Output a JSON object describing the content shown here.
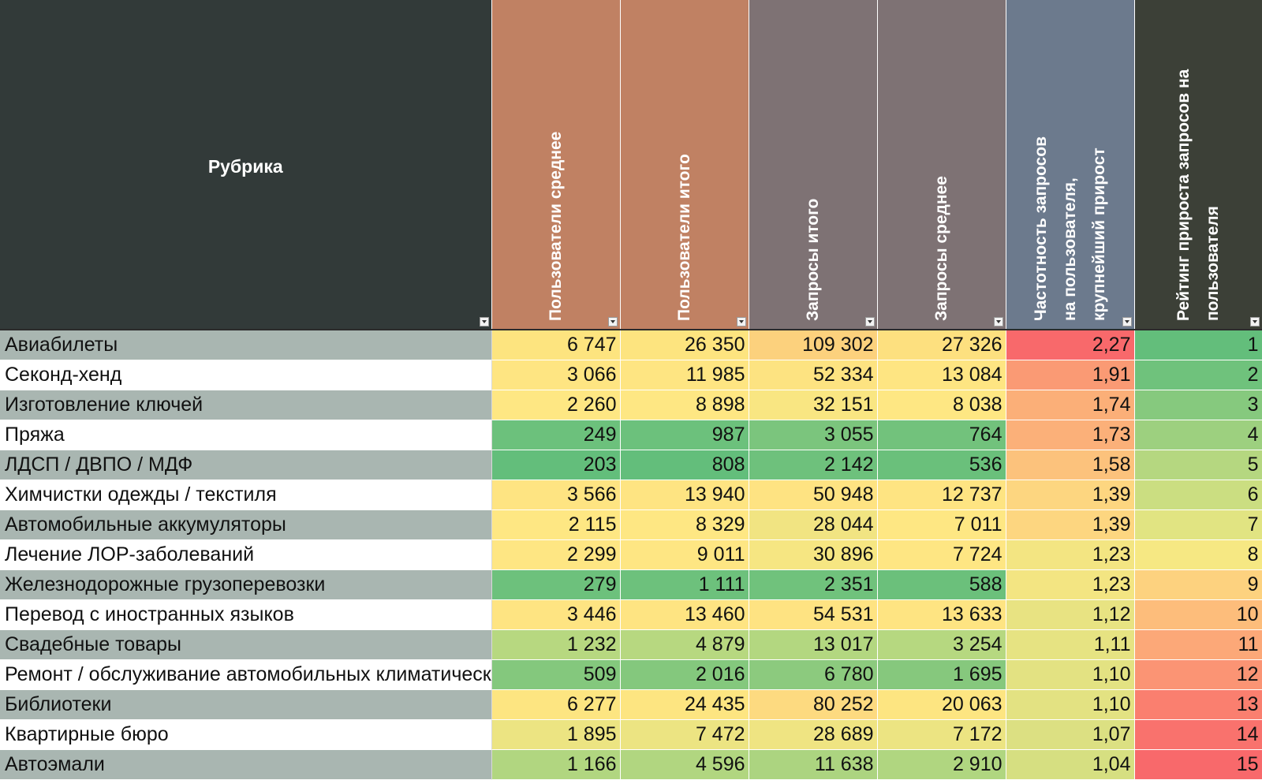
{
  "table": {
    "columns": [
      {
        "key": "rubric",
        "label": [
          "Рубрика"
        ],
        "header_bg": "#323a39"
      },
      {
        "key": "users_avg",
        "label": [
          "Пользователи среднее"
        ],
        "header_bg": "#c08163"
      },
      {
        "key": "users_total",
        "label": [
          "Пользователи итого"
        ],
        "header_bg": "#c08163"
      },
      {
        "key": "req_total",
        "label": [
          "Запросы итого"
        ],
        "header_bg": "#7e7274"
      },
      {
        "key": "req_avg",
        "label": [
          "Запросы среднее"
        ],
        "header_bg": "#7e7274"
      },
      {
        "key": "freq",
        "label": [
          "Частотность запросов",
          "на пользователя,",
          "крупнейший прирост"
        ],
        "header_bg": "#6c7a8d"
      },
      {
        "key": "rating",
        "label": [
          "Рейтинг прироста запросов на",
          "пользователя"
        ],
        "header_bg": "#3c4037"
      }
    ],
    "rows": [
      {
        "name": "Авиабилеты",
        "users_avg": "6 747",
        "users_total": "26 350",
        "req_total": "109 302",
        "req_avg": "27 326",
        "freq": "2,27",
        "rating": "1",
        "colors": [
          "#fde47f",
          "#fde47f",
          "#fcd17d",
          "#fde07f",
          "#f8696b",
          "#63be7b"
        ]
      },
      {
        "name": "Секонд-хенд",
        "users_avg": "3 066",
        "users_total": "11 985",
        "req_total": "52 334",
        "req_avg": "13 084",
        "freq": "1,91",
        "rating": "2",
        "colors": [
          "#fee582",
          "#fee582",
          "#fde381",
          "#fee582",
          "#fa9a74",
          "#6fc27c"
        ]
      },
      {
        "name": "Изготовление ключей",
        "users_avg": "2 260",
        "users_total": "8 898",
        "req_total": "32 151",
        "req_avg": "8 038",
        "freq": "1,74",
        "rating": "3",
        "colors": [
          "#fee783",
          "#fee783",
          "#f9e682",
          "#fee783",
          "#fbaf78",
          "#86c97e"
        ]
      },
      {
        "name": "Пряжа",
        "users_avg": "249",
        "users_total": "987",
        "req_total": "3 055",
        "req_avg": "764",
        "freq": "1,73",
        "rating": "4",
        "colors": [
          "#6cc17c",
          "#6cc17c",
          "#7bc57d",
          "#72c27c",
          "#fbb079",
          "#9dd07f"
        ]
      },
      {
        "name": "ЛДСП / ДВПО / МДФ",
        "users_avg": "203",
        "users_total": "808",
        "req_total": "2 142",
        "req_avg": "536",
        "freq": "1,58",
        "rating": "5",
        "colors": [
          "#63be7b",
          "#63be7b",
          "#6ec17c",
          "#6ac07b",
          "#fcc27c",
          "#b5d780"
        ]
      },
      {
        "name": "Химчистки одежды / текстиля",
        "users_avg": "3 566",
        "users_total": "13 940",
        "req_total": "50 948",
        "req_avg": "12 737",
        "freq": "1,39",
        "rating": "6",
        "colors": [
          "#fee482",
          "#fee482",
          "#fee382",
          "#fee482",
          "#fdd680",
          "#cbde81"
        ]
      },
      {
        "name": "Автомобильные аккумуляторы",
        "users_avg": "2 115",
        "users_total": "8 329",
        "req_total": "28 044",
        "req_avg": "7 011",
        "freq": "1,39",
        "rating": "7",
        "colors": [
          "#fee783",
          "#fee783",
          "#f1e482",
          "#fee783",
          "#fdd680",
          "#e1e482"
        ]
      },
      {
        "name": "Лечение ЛОР-заболеваний",
        "users_avg": "2 299",
        "users_total": "9 011",
        "req_total": "30 896",
        "req_avg": "7 724",
        "freq": "1,23",
        "rating": "8",
        "colors": [
          "#fee683",
          "#fee683",
          "#f6e682",
          "#fee683",
          "#f3e582",
          "#f6e883"
        ]
      },
      {
        "name": "Железнодорожные грузоперевозки",
        "users_avg": "279",
        "users_total": "1 111",
        "req_total": "2 351",
        "req_avg": "588",
        "freq": "1,23",
        "rating": "9",
        "colors": [
          "#6dc17c",
          "#6dc17c",
          "#70c27c",
          "#6bc07b",
          "#f3e582",
          "#fdd27f"
        ]
      },
      {
        "name": "Перевод с иностранных языков",
        "users_avg": "3 446",
        "users_total": "13 460",
        "req_total": "54 531",
        "req_avg": "13 633",
        "freq": "1,12",
        "rating": "10",
        "colors": [
          "#fee482",
          "#fee482",
          "#fee382",
          "#fee482",
          "#e8e382",
          "#fdbd7b"
        ]
      },
      {
        "name": "Свадебные товары",
        "users_avg": "1 232",
        "users_total": "4 879",
        "req_total": "13 017",
        "req_avg": "3 254",
        "freq": "1,11",
        "rating": "11",
        "colors": [
          "#b7d880",
          "#b7d880",
          "#b3d780",
          "#b6d880",
          "#e6e382",
          "#fca878"
        ]
      },
      {
        "name": "Ремонт / обслуживание автомобильных климатических си",
        "users_avg": "509",
        "users_total": "2 016",
        "req_total": "6 780",
        "req_avg": "1 695",
        "freq": "1,10",
        "rating": "12",
        "colors": [
          "#84c87d",
          "#84c87d",
          "#8cca7e",
          "#86c87d",
          "#e3e282",
          "#fb9474"
        ]
      },
      {
        "name": "Библиотеки",
        "users_avg": "6 277",
        "users_total": "24 435",
        "req_total": "80 252",
        "req_avg": "20 063",
        "freq": "1,10",
        "rating": "13",
        "colors": [
          "#fde581",
          "#fde581",
          "#fdda80",
          "#fde581",
          "#e3e282",
          "#fa7f6f"
        ]
      },
      {
        "name": "Квартирные бюро",
        "users_avg": "1 895",
        "users_total": "7 472",
        "req_total": "28 689",
        "req_avg": "7 172",
        "freq": "1,07",
        "rating": "14",
        "colors": [
          "#ece482",
          "#ece482",
          "#efe482",
          "#ece482",
          "#dce082",
          "#f9726d"
        ]
      },
      {
        "name": "Автоэмали",
        "users_avg": "1 166",
        "users_total": "4 596",
        "req_total": "11 638",
        "req_avg": "2 910",
        "freq": "1,04",
        "rating": "15",
        "colors": [
          "#b1d680",
          "#b1d680",
          "#acd480",
          "#b0d680",
          "#d6df81",
          "#f8696b"
        ]
      }
    ]
  }
}
